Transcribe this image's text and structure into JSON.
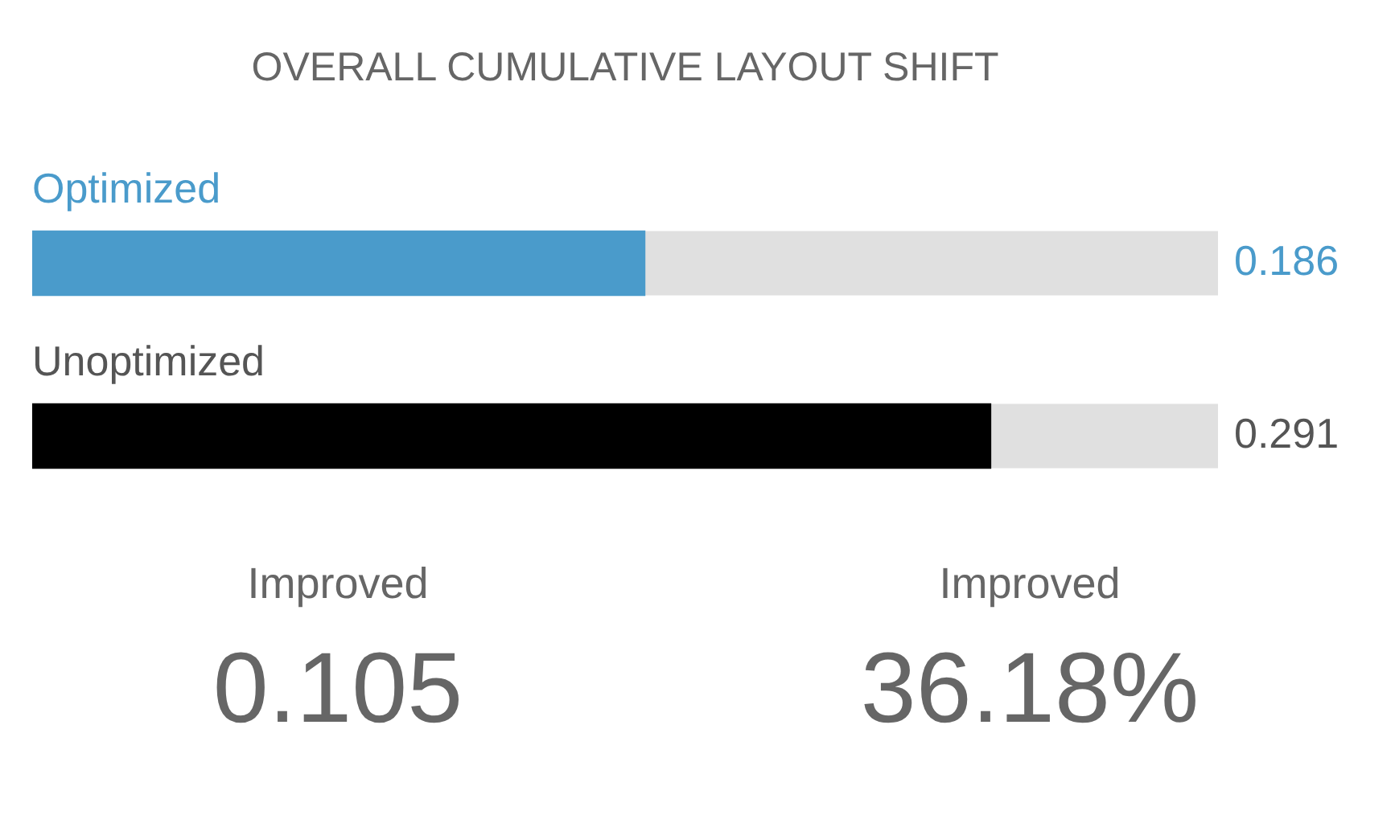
{
  "chart_data": {
    "type": "bar",
    "orientation": "horizontal",
    "title": "OVERALL CUMULATIVE LAYOUT SHIFT",
    "categories": [
      "Optimized",
      "Unoptimized"
    ],
    "values": [
      0.186,
      0.291
    ],
    "colors": [
      "#4a9bcb",
      "#000000"
    ],
    "xlim": [
      0,
      0.36
    ],
    "tick_labels": false,
    "legend": false,
    "data_labels": true,
    "annotations": [
      "Improved",
      "0.105",
      "Improved",
      "36.18%"
    ]
  }
}
